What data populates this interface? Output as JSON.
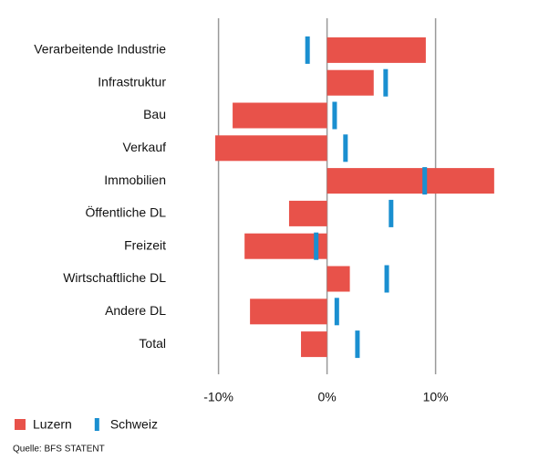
{
  "chart_data": {
    "type": "bar",
    "orientation": "horizontal",
    "categories": [
      "Verarbeitende Industrie",
      "Infrastruktur",
      "Bau",
      "Verkauf",
      "Immobilien",
      "Öffentliche DL",
      "Freizeit",
      "Wirtschaftliche DL",
      "Andere DL",
      "Total"
    ],
    "series": [
      {
        "name": "Luzern",
        "color": "#e8524a",
        "mark": "bar",
        "values": [
          9.1,
          4.3,
          -8.7,
          -10.3,
          15.4,
          -3.5,
          -7.6,
          2.1,
          -7.1,
          -2.4
        ]
      },
      {
        "name": "Schweiz",
        "color": "#1a8fd0",
        "mark": "tick",
        "values": [
          -1.8,
          5.4,
          0.7,
          1.7,
          9.0,
          5.9,
          -1.0,
          5.5,
          0.9,
          2.8
        ]
      }
    ],
    "xlim": [
      -14,
      16
    ],
    "xticks": [
      {
        "value": -10,
        "label": "-10%"
      },
      {
        "value": 0,
        "label": "0%"
      },
      {
        "value": 10,
        "label": "10%"
      }
    ],
    "grid": true,
    "legend": "bottom-left",
    "source": "Quelle: BFS STATENT"
  }
}
